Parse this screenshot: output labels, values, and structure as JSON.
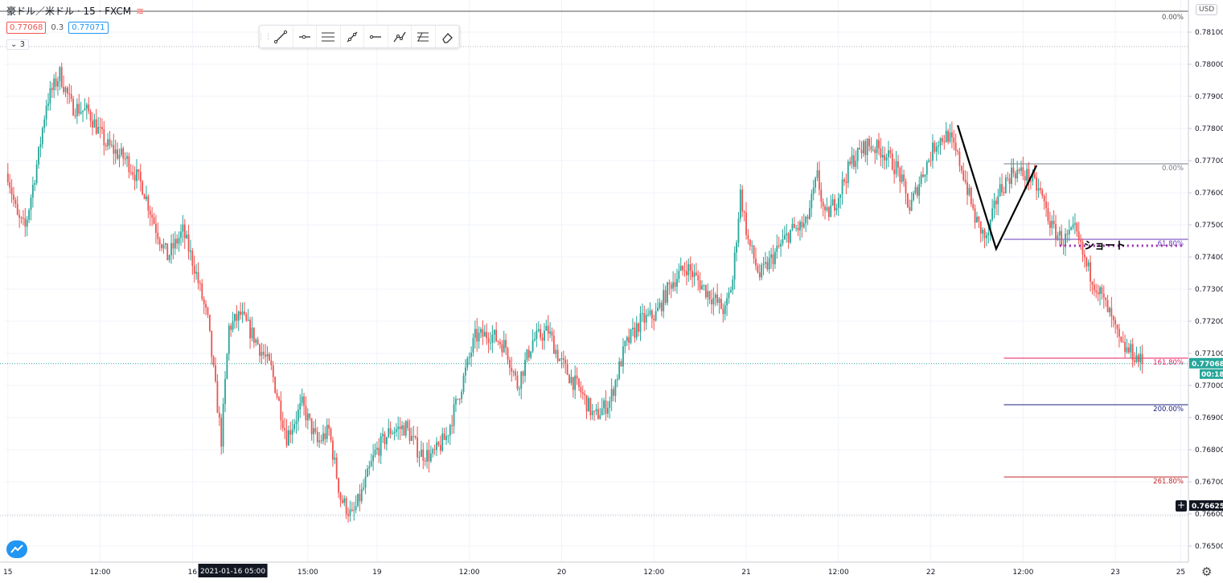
{
  "header": {
    "symbol_line": "豪ドル／米ドル · 15 · FXCM",
    "indicator_icon": "wave-icon",
    "sell_price": "0.77068",
    "spread": "0.3",
    "buy_price": "0.77071",
    "indicator_count": "3"
  },
  "currency_label": "USD",
  "toolbar": {
    "tools": [
      "trend-line-icon",
      "horizontal-ray-icon",
      "parallel-channel-icon",
      "ray-icon",
      "horizontal-line-icon",
      "polyline-icon",
      "fib-retracement-icon",
      "eraser-icon"
    ]
  },
  "chart_data": {
    "type": "candlestick",
    "symbol": "AUD/USD",
    "timeframe": "15",
    "source": "FXCM",
    "ylim": [
      0.7645,
      0.782
    ],
    "y_ticks": [
      "0.78100",
      "0.78000",
      "0.77900",
      "0.77800",
      "0.77700",
      "0.77600",
      "0.77500",
      "0.77400",
      "0.77300",
      "0.77200",
      "0.77100",
      "0.77000",
      "0.76900",
      "0.76800",
      "0.76700",
      "0.76600",
      "0.76500"
    ],
    "x_ticks": [
      {
        "label": "15",
        "t": 0
      },
      {
        "label": "12:00",
        "t": 48
      },
      {
        "label": "16",
        "t": 96
      },
      {
        "label": "15:00",
        "t": 156
      },
      {
        "label": "19",
        "t": 192
      },
      {
        "label": "12:00",
        "t": 240
      },
      {
        "label": "20",
        "t": 288
      },
      {
        "label": "12:00",
        "t": 336
      },
      {
        "label": "21",
        "t": 384
      },
      {
        "label": "12:00",
        "t": 432
      },
      {
        "label": "22",
        "t": 480
      },
      {
        "label": "12:00",
        "t": 528
      },
      {
        "label": "23",
        "t": 576
      },
      {
        "label": "25",
        "t": 610
      }
    ],
    "cursor_time_label": "2021-01-16 05:00",
    "cursor_time_t": 117,
    "anchors": [
      [
        0,
        0.7766
      ],
      [
        5,
        0.7752
      ],
      [
        9,
        0.7749
      ],
      [
        16,
        0.7772
      ],
      [
        20,
        0.7788
      ],
      [
        27,
        0.7797
      ],
      [
        33,
        0.7787
      ],
      [
        42,
        0.7785
      ],
      [
        51,
        0.7775
      ],
      [
        62,
        0.777
      ],
      [
        70,
        0.7762
      ],
      [
        77,
        0.7749
      ],
      [
        83,
        0.774
      ],
      [
        91,
        0.7748
      ],
      [
        97,
        0.7737
      ],
      [
        104,
        0.772
      ],
      [
        111,
        0.7683
      ],
      [
        115,
        0.7718
      ],
      [
        121,
        0.7722
      ],
      [
        129,
        0.7714
      ],
      [
        137,
        0.7705
      ],
      [
        145,
        0.7684
      ],
      [
        153,
        0.7694
      ],
      [
        161,
        0.7682
      ],
      [
        167,
        0.7686
      ],
      [
        173,
        0.7665
      ],
      [
        179,
        0.7659
      ],
      [
        185,
        0.7668
      ],
      [
        191,
        0.7679
      ],
      [
        199,
        0.7686
      ],
      [
        207,
        0.7687
      ],
      [
        214,
        0.7679
      ],
      [
        221,
        0.7678
      ],
      [
        228,
        0.7684
      ],
      [
        235,
        0.7698
      ],
      [
        243,
        0.7715
      ],
      [
        251,
        0.7716
      ],
      [
        259,
        0.7712
      ],
      [
        265,
        0.77
      ],
      [
        273,
        0.7714
      ],
      [
        281,
        0.7717
      ],
      [
        287,
        0.7708
      ],
      [
        292,
        0.7703
      ],
      [
        298,
        0.7698
      ],
      [
        305,
        0.769
      ],
      [
        313,
        0.7695
      ],
      [
        321,
        0.7712
      ],
      [
        329,
        0.772
      ],
      [
        337,
        0.7722
      ],
      [
        345,
        0.7732
      ],
      [
        353,
        0.7737
      ],
      [
        361,
        0.7731
      ],
      [
        367,
        0.7727
      ],
      [
        373,
        0.7723
      ],
      [
        377,
        0.7733
      ],
      [
        381,
        0.776
      ],
      [
        385,
        0.7745
      ],
      [
        391,
        0.7734
      ],
      [
        399,
        0.7741
      ],
      [
        407,
        0.7748
      ],
      [
        415,
        0.775
      ],
      [
        421,
        0.7765
      ],
      [
        425,
        0.7752
      ],
      [
        431,
        0.7758
      ],
      [
        439,
        0.777
      ],
      [
        447,
        0.7775
      ],
      [
        455,
        0.7773
      ],
      [
        463,
        0.7767
      ],
      [
        469,
        0.7755
      ],
      [
        475,
        0.7765
      ],
      [
        483,
        0.7776
      ],
      [
        489,
        0.7778
      ],
      [
        496,
        0.7768
      ],
      [
        503,
        0.7752
      ],
      [
        509,
        0.7745
      ],
      [
        515,
        0.776
      ],
      [
        523,
        0.7767
      ],
      [
        531,
        0.7765
      ],
      [
        537,
        0.776
      ],
      [
        543,
        0.7749
      ],
      [
        549,
        0.7745
      ],
      [
        555,
        0.7748
      ],
      [
        561,
        0.7737
      ],
      [
        567,
        0.773
      ],
      [
        573,
        0.7722
      ],
      [
        579,
        0.7712
      ],
      [
        585,
        0.771
      ],
      [
        590,
        0.7707
      ]
    ],
    "last_price": "0.77068",
    "countdown": "00:18",
    "cursor_price": "0.76625",
    "cursor_price_value": 0.76625,
    "dotted_levels": [
      0.78055,
      0.76595
    ],
    "fib_top": {
      "levels": [
        {
          "label": "0.00%",
          "value": 0.78165,
          "color": "#555555"
        }
      ]
    },
    "fib_right": {
      "t_start": 518,
      "levels": [
        {
          "label": "0.00%",
          "value": 0.7769,
          "color": "#787b86"
        },
        {
          "label": "61.80%",
          "value": 0.77455,
          "color": "#673ab7"
        },
        {
          "label": "161.80%",
          "value": 0.77085,
          "color": "#e91e63"
        },
        {
          "label": "200.00%",
          "value": 0.7694,
          "color": "#1a237e"
        },
        {
          "label": "261.80%",
          "value": 0.76715,
          "color": "#c62828"
        }
      ]
    },
    "zigzag": [
      [
        494,
        0.7781
      ],
      [
        514,
        0.77425
      ],
      [
        535,
        0.77685
      ]
    ],
    "short_level": {
      "value": 0.77435,
      "t_start": 547,
      "label": "ショート",
      "color": "#9c27b0"
    }
  }
}
